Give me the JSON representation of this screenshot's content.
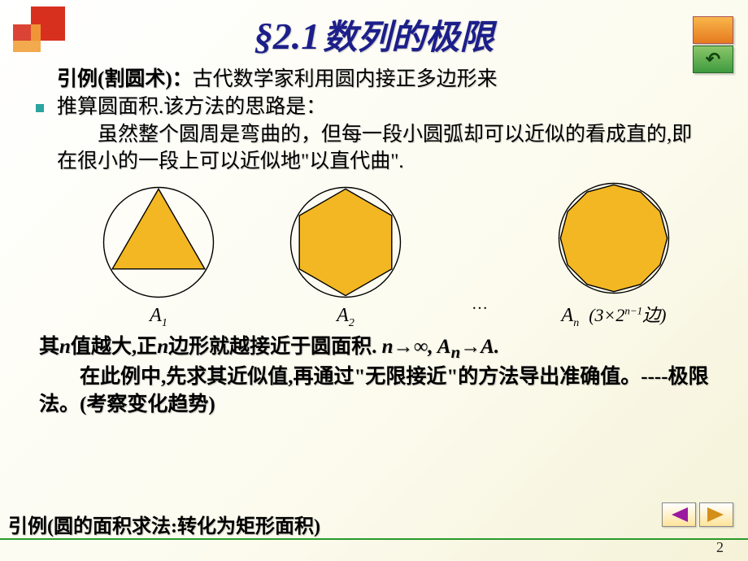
{
  "title": {
    "section": "§2.1",
    "text": "数列的极限"
  },
  "para": {
    "lead": "引例(割圆术)：",
    "p1a": "古代数学家利用圆内接正多边形来",
    "p1b": "推算圆面积.该方法的思路是：",
    "p2": "虽然整个圆周是弯曲的，但每一段小圆弧却可以近似的看成直的,即在很小的一段上可以近似地\"以直代曲\"."
  },
  "fig": {
    "circle_color": "#000000",
    "fill_color": "#f2b722",
    "stroke_color": "#000000",
    "bg_color": "#ffffff",
    "radius": 70,
    "items": [
      {
        "sides": 3,
        "label": "A",
        "sub": "1"
      },
      {
        "sides": 6,
        "label": "A",
        "sub": "2"
      },
      {
        "sides": 12,
        "label": "A",
        "sub": "n"
      }
    ],
    "ellipsis": "…",
    "side_formula": "(3×2",
    "side_formula_sup": "n−1",
    "side_formula_tail": "边)"
  },
  "below": {
    "line1a": "其",
    "line1n": "n",
    "line1b": "值越大,正",
    "line1n2": "n",
    "line1c": "边形就越接近于圆面积. ",
    "limit": "n→∞, Aₙ→A.",
    "line2": "在此例中,先求其近似值,再通过\"无限接近\"的方法导出准确值。----极限法。(考察变化趋势)"
  },
  "footer": "引例(圆的面积求法:转化为矩形面积)",
  "nav": {
    "back_glyph": "↶",
    "tri_left": "◀",
    "tri_right": "▶",
    "color_left": "#9a1aa0",
    "color_right": "#d48f1a"
  },
  "page_number": "2",
  "colors": {
    "title": "#1c1f8a",
    "accent_teal": "#2aa5a0",
    "red_sq": "#d8301f",
    "orange_sq": "#f2a03a",
    "green_line": "#2a9a2a"
  }
}
